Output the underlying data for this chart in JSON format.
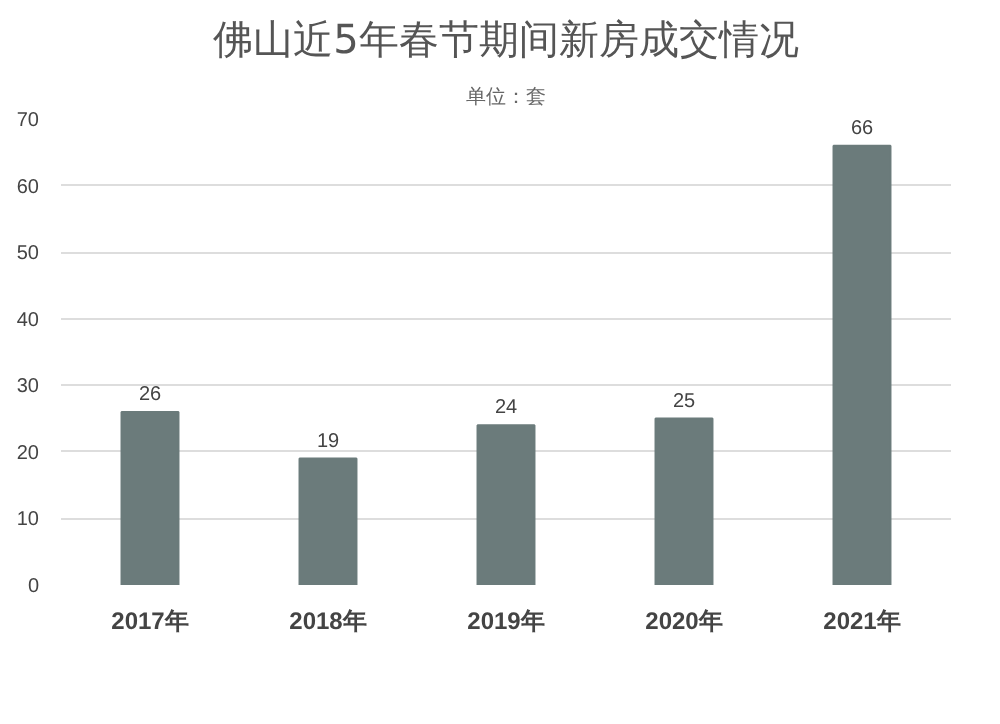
{
  "chart_data": {
    "type": "bar",
    "title": "佛山近5年春节期间新房成交情况",
    "subtitle": "单位：套",
    "categories": [
      "2017年",
      "2018年",
      "2019年",
      "2020年",
      "2021年"
    ],
    "values": [
      26,
      19,
      24,
      25,
      66
    ],
    "color": "#6b7b7b",
    "ylim": [
      0,
      70
    ],
    "yticks": [
      0,
      10,
      20,
      30,
      40,
      50,
      60,
      70
    ],
    "grid": "y",
    "data_labels": true
  }
}
